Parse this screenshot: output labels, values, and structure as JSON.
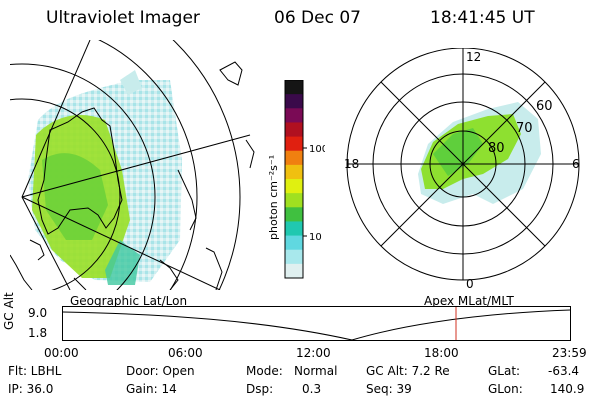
{
  "header": {
    "instrument": "Ultraviolet Imager",
    "date": "06 Dec 07",
    "time": "18:41:45 UT"
  },
  "colorbar": {
    "unit_label": "photon cm⁻²s⁻¹",
    "ticks": [
      "100",
      "10"
    ],
    "colors": [
      "#151515",
      "#3a0a4a",
      "#7a0a55",
      "#b01020",
      "#e02010",
      "#f08010",
      "#f0c010",
      "#e0f010",
      "#a0e020",
      "#40c040",
      "#20c8b0",
      "#60d8e0",
      "#a8e8ec",
      "#e0f0f0"
    ]
  },
  "maps": {
    "left_label": "Geographic Lat/Lon",
    "right_label": "Apex MLat/MLT",
    "polar_mlt": {
      "top": "12",
      "bottom": "0",
      "left": "18",
      "right": "6"
    },
    "polar_lat": [
      "60",
      "70",
      "80"
    ]
  },
  "altitude_plot": {
    "axis_label": "GC Alt",
    "y_ticks": [
      "9.0",
      "1.8"
    ],
    "x_ticks": [
      "00:00",
      "06:00",
      "12:00",
      "18:00",
      "23:59"
    ],
    "marker_color": "#d03020"
  },
  "info": {
    "filter": "Flt: LBHL",
    "ip": "IP: 36.0",
    "door": "Door: Open",
    "gain": "Gain: 14",
    "mode_label": "Mode:",
    "mode_value": "Normal",
    "dsp_label": "Dsp:",
    "dsp_value": "0.3",
    "gc_alt": "GC Alt: 7.2 Re",
    "seq": "Seq: 39",
    "glat_label": "GLat:",
    "glat_value": "-63.4",
    "glon_label": "GLon:",
    "glon_value": "140.9"
  }
}
